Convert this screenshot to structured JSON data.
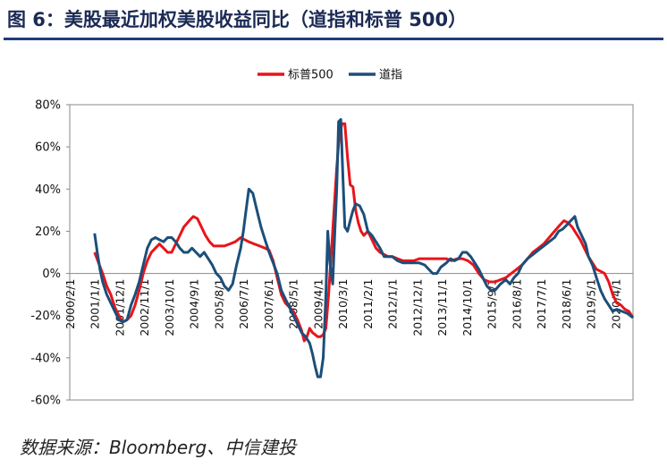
{
  "figure_title": "图 6：美股最近加权美股收益同比（道指和标普 500）",
  "source": "数据来源：Bloomberg、中信建投",
  "colors": {
    "sp500": "#e8141b",
    "dow": "#1b4f7a",
    "title": "#1b2a55",
    "rule": "#1f3d7a"
  },
  "chart_data": {
    "type": "line",
    "title": "",
    "xlabel": "",
    "ylabel": "",
    "ylim": [
      -60,
      80
    ],
    "ytick_step": 20,
    "grid": false,
    "legend_position": "top-center",
    "y_ticks": [
      "-60%",
      "-40%",
      "-20%",
      "0%",
      "20%",
      "40%",
      "60%",
      "80%"
    ],
    "x_ticks": [
      {
        "t": 2000.083,
        "label": "2000/2/1"
      },
      {
        "t": 2001.0,
        "label": "2001/1/1"
      },
      {
        "t": 2001.917,
        "label": "2001/12/1"
      },
      {
        "t": 2002.833,
        "label": "2002/11/1"
      },
      {
        "t": 2003.75,
        "label": "2003/10/1"
      },
      {
        "t": 2004.667,
        "label": "2004/9/1"
      },
      {
        "t": 2005.583,
        "label": "2005/8/1"
      },
      {
        "t": 2006.5,
        "label": "2006/7/1"
      },
      {
        "t": 2007.417,
        "label": "2007/6/1"
      },
      {
        "t": 2008.333,
        "label": "2008/5/1"
      },
      {
        "t": 2009.25,
        "label": "2009/4/1"
      },
      {
        "t": 2010.167,
        "label": "2010/3/1"
      },
      {
        "t": 2011.083,
        "label": "2011/2/1"
      },
      {
        "t": 2012.0,
        "label": "2012/1/1"
      },
      {
        "t": 2012.917,
        "label": "2012/12/1"
      },
      {
        "t": 2013.833,
        "label": "2013/11/1"
      },
      {
        "t": 2014.75,
        "label": "2014/10/1"
      },
      {
        "t": 2015.667,
        "label": "2015/9/1"
      },
      {
        "t": 2016.583,
        "label": "2016/8/1"
      },
      {
        "t": 2017.5,
        "label": "2017/7/1"
      },
      {
        "t": 2018.417,
        "label": "2018/6/1"
      },
      {
        "t": 2019.333,
        "label": "2019/5/1"
      },
      {
        "t": 2020.25,
        "label": "2020/4/1"
      }
    ],
    "x_range": [
      2000.083,
      2020.9
    ],
    "series": [
      {
        "name": "标普500",
        "color": "#e8141b",
        "points": [
          [
            2001.0,
            10
          ],
          [
            2001.15,
            5
          ],
          [
            2001.3,
            0
          ],
          [
            2001.45,
            -6
          ],
          [
            2001.6,
            -10
          ],
          [
            2001.75,
            -16
          ],
          [
            2001.9,
            -20
          ],
          [
            2002.05,
            -23
          ],
          [
            2002.2,
            -22
          ],
          [
            2002.35,
            -20
          ],
          [
            2002.5,
            -15
          ],
          [
            2002.65,
            -8
          ],
          [
            2002.8,
            0
          ],
          [
            2002.95,
            6
          ],
          [
            2003.1,
            10
          ],
          [
            2003.25,
            12
          ],
          [
            2003.4,
            14
          ],
          [
            2003.55,
            12
          ],
          [
            2003.7,
            10
          ],
          [
            2003.85,
            10
          ],
          [
            2004.0,
            14
          ],
          [
            2004.15,
            18
          ],
          [
            2004.3,
            22
          ],
          [
            2004.5,
            25
          ],
          [
            2004.65,
            27
          ],
          [
            2004.8,
            26
          ],
          [
            2004.95,
            22
          ],
          [
            2005.1,
            18
          ],
          [
            2005.25,
            15
          ],
          [
            2005.4,
            13
          ],
          [
            2005.6,
            13
          ],
          [
            2005.8,
            13
          ],
          [
            2006.0,
            14
          ],
          [
            2006.2,
            15
          ],
          [
            2006.4,
            17
          ],
          [
            2006.55,
            16
          ],
          [
            2006.7,
            15
          ],
          [
            2006.9,
            14
          ],
          [
            2007.1,
            13
          ],
          [
            2007.3,
            12
          ],
          [
            2007.45,
            11
          ],
          [
            2007.6,
            6
          ],
          [
            2007.75,
            -2
          ],
          [
            2007.9,
            -10
          ],
          [
            2008.05,
            -14
          ],
          [
            2008.2,
            -16
          ],
          [
            2008.35,
            -18
          ],
          [
            2008.5,
            -22
          ],
          [
            2008.65,
            -27
          ],
          [
            2008.75,
            -32
          ],
          [
            2008.85,
            -30
          ],
          [
            2008.95,
            -26
          ],
          [
            2009.05,
            -28
          ],
          [
            2009.15,
            -29
          ],
          [
            2009.25,
            -30
          ],
          [
            2009.35,
            -30
          ],
          [
            2009.45,
            -29
          ],
          [
            2009.55,
            -26
          ],
          [
            2009.65,
            -10
          ],
          [
            2009.75,
            10
          ],
          [
            2009.85,
            30
          ],
          [
            2009.95,
            50
          ],
          [
            2010.05,
            66
          ],
          [
            2010.15,
            71
          ],
          [
            2010.25,
            71
          ],
          [
            2010.35,
            55
          ],
          [
            2010.45,
            42
          ],
          [
            2010.55,
            41
          ],
          [
            2010.65,
            30
          ],
          [
            2010.75,
            24
          ],
          [
            2010.85,
            20
          ],
          [
            2010.95,
            18
          ],
          [
            2011.1,
            20
          ],
          [
            2011.25,
            16
          ],
          [
            2011.4,
            12
          ],
          [
            2011.55,
            10
          ],
          [
            2011.7,
            9
          ],
          [
            2011.85,
            8
          ],
          [
            2012.0,
            8
          ],
          [
            2012.2,
            7
          ],
          [
            2012.4,
            6
          ],
          [
            2012.6,
            6
          ],
          [
            2012.8,
            6
          ],
          [
            2013.0,
            7
          ],
          [
            2013.2,
            7
          ],
          [
            2013.4,
            7
          ],
          [
            2013.6,
            7
          ],
          [
            2013.8,
            7
          ],
          [
            2014.0,
            7
          ],
          [
            2014.2,
            6
          ],
          [
            2014.4,
            7
          ],
          [
            2014.6,
            7
          ],
          [
            2014.8,
            6
          ],
          [
            2015.0,
            4
          ],
          [
            2015.2,
            0
          ],
          [
            2015.4,
            -3
          ],
          [
            2015.6,
            -4
          ],
          [
            2015.8,
            -4
          ],
          [
            2016.0,
            -3
          ],
          [
            2016.2,
            -2
          ],
          [
            2016.4,
            0
          ],
          [
            2016.6,
            2
          ],
          [
            2016.8,
            4
          ],
          [
            2017.0,
            7
          ],
          [
            2017.2,
            10
          ],
          [
            2017.4,
            12
          ],
          [
            2017.6,
            14
          ],
          [
            2017.8,
            17
          ],
          [
            2018.0,
            20
          ],
          [
            2018.2,
            23
          ],
          [
            2018.35,
            25
          ],
          [
            2018.5,
            24
          ],
          [
            2018.65,
            22
          ],
          [
            2018.8,
            19
          ],
          [
            2018.95,
            16
          ],
          [
            2019.1,
            12
          ],
          [
            2019.25,
            8
          ],
          [
            2019.4,
            5
          ],
          [
            2019.55,
            2
          ],
          [
            2019.7,
            1
          ],
          [
            2019.85,
            0
          ],
          [
            2020.0,
            -4
          ],
          [
            2020.15,
            -10
          ],
          [
            2020.3,
            -14
          ],
          [
            2020.45,
            -15
          ],
          [
            2020.6,
            -17
          ],
          [
            2020.75,
            -18
          ],
          [
            2020.9,
            -21
          ]
        ]
      },
      {
        "name": "道指",
        "color": "#1b4f7a",
        "points": [
          [
            2001.0,
            19
          ],
          [
            2001.1,
            10
          ],
          [
            2001.2,
            2
          ],
          [
            2001.3,
            -4
          ],
          [
            2001.45,
            -10
          ],
          [
            2001.6,
            -14
          ],
          [
            2001.75,
            -18
          ],
          [
            2001.9,
            -22
          ],
          [
            2002.05,
            -23
          ],
          [
            2002.2,
            -22
          ],
          [
            2002.35,
            -15
          ],
          [
            2002.5,
            -10
          ],
          [
            2002.65,
            -4
          ],
          [
            2002.8,
            4
          ],
          [
            2002.95,
            12
          ],
          [
            2003.1,
            16
          ],
          [
            2003.25,
            17
          ],
          [
            2003.4,
            16
          ],
          [
            2003.55,
            15
          ],
          [
            2003.7,
            17
          ],
          [
            2003.85,
            17
          ],
          [
            2004.0,
            15
          ],
          [
            2004.15,
            12
          ],
          [
            2004.3,
            10
          ],
          [
            2004.45,
            10
          ],
          [
            2004.6,
            12
          ],
          [
            2004.75,
            10
          ],
          [
            2004.9,
            8
          ],
          [
            2005.05,
            10
          ],
          [
            2005.2,
            7
          ],
          [
            2005.35,
            4
          ],
          [
            2005.5,
            0
          ],
          [
            2005.65,
            -2
          ],
          [
            2005.8,
            -6
          ],
          [
            2005.95,
            -8
          ],
          [
            2006.1,
            -5
          ],
          [
            2006.25,
            4
          ],
          [
            2006.4,
            12
          ],
          [
            2006.5,
            20
          ],
          [
            2006.6,
            30
          ],
          [
            2006.7,
            40
          ],
          [
            2006.85,
            38
          ],
          [
            2007.0,
            30
          ],
          [
            2007.15,
            22
          ],
          [
            2007.3,
            16
          ],
          [
            2007.45,
            10
          ],
          [
            2007.6,
            5
          ],
          [
            2007.75,
            0
          ],
          [
            2007.9,
            -8
          ],
          [
            2008.05,
            -12
          ],
          [
            2008.2,
            -16
          ],
          [
            2008.35,
            -20
          ],
          [
            2008.5,
            -24
          ],
          [
            2008.65,
            -28
          ],
          [
            2008.8,
            -30
          ],
          [
            2008.95,
            -33
          ],
          [
            2009.05,
            -38
          ],
          [
            2009.15,
            -44
          ],
          [
            2009.25,
            -49
          ],
          [
            2009.35,
            -49
          ],
          [
            2009.45,
            -40
          ],
          [
            2009.55,
            -10
          ],
          [
            2009.62,
            20
          ],
          [
            2009.7,
            5
          ],
          [
            2009.8,
            -5
          ],
          [
            2009.88,
            20
          ],
          [
            2009.95,
            40
          ],
          [
            2010.02,
            72
          ],
          [
            2010.1,
            73
          ],
          [
            2010.18,
            45
          ],
          [
            2010.25,
            22
          ],
          [
            2010.35,
            20
          ],
          [
            2010.45,
            25
          ],
          [
            2010.55,
            30
          ],
          [
            2010.65,
            33
          ],
          [
            2010.8,
            32
          ],
          [
            2010.95,
            28
          ],
          [
            2011.1,
            20
          ],
          [
            2011.25,
            18
          ],
          [
            2011.4,
            15
          ],
          [
            2011.55,
            12
          ],
          [
            2011.7,
            8
          ],
          [
            2011.85,
            8
          ],
          [
            2012.0,
            8
          ],
          [
            2012.2,
            6
          ],
          [
            2012.4,
            5
          ],
          [
            2012.6,
            5
          ],
          [
            2012.8,
            5
          ],
          [
            2013.0,
            5
          ],
          [
            2013.2,
            4
          ],
          [
            2013.35,
            2
          ],
          [
            2013.5,
            0
          ],
          [
            2013.65,
            0
          ],
          [
            2013.8,
            3
          ],
          [
            2014.0,
            5
          ],
          [
            2014.15,
            7
          ],
          [
            2014.3,
            6
          ],
          [
            2014.45,
            7
          ],
          [
            2014.6,
            10
          ],
          [
            2014.75,
            10
          ],
          [
            2014.9,
            8
          ],
          [
            2015.05,
            5
          ],
          [
            2015.2,
            2
          ],
          [
            2015.35,
            -2
          ],
          [
            2015.5,
            -6
          ],
          [
            2015.65,
            -8
          ],
          [
            2015.8,
            -8
          ],
          [
            2016.0,
            -5
          ],
          [
            2016.2,
            -3
          ],
          [
            2016.35,
            -5
          ],
          [
            2016.5,
            -2
          ],
          [
            2016.65,
            0
          ],
          [
            2016.8,
            4
          ],
          [
            2017.0,
            7
          ],
          [
            2017.2,
            9
          ],
          [
            2017.4,
            11
          ],
          [
            2017.6,
            13
          ],
          [
            2017.8,
            15
          ],
          [
            2018.0,
            17
          ],
          [
            2018.15,
            20
          ],
          [
            2018.3,
            21
          ],
          [
            2018.45,
            23
          ],
          [
            2018.6,
            25
          ],
          [
            2018.75,
            27
          ],
          [
            2018.85,
            22
          ],
          [
            2019.0,
            18
          ],
          [
            2019.15,
            14
          ],
          [
            2019.25,
            8
          ],
          [
            2019.4,
            4
          ],
          [
            2019.55,
            -2
          ],
          [
            2019.7,
            -8
          ],
          [
            2019.85,
            -12
          ],
          [
            2020.0,
            -15
          ],
          [
            2020.15,
            -18
          ],
          [
            2020.3,
            -17
          ],
          [
            2020.5,
            -18
          ],
          [
            2020.7,
            -19
          ],
          [
            2020.9,
            -21
          ]
        ]
      }
    ]
  }
}
